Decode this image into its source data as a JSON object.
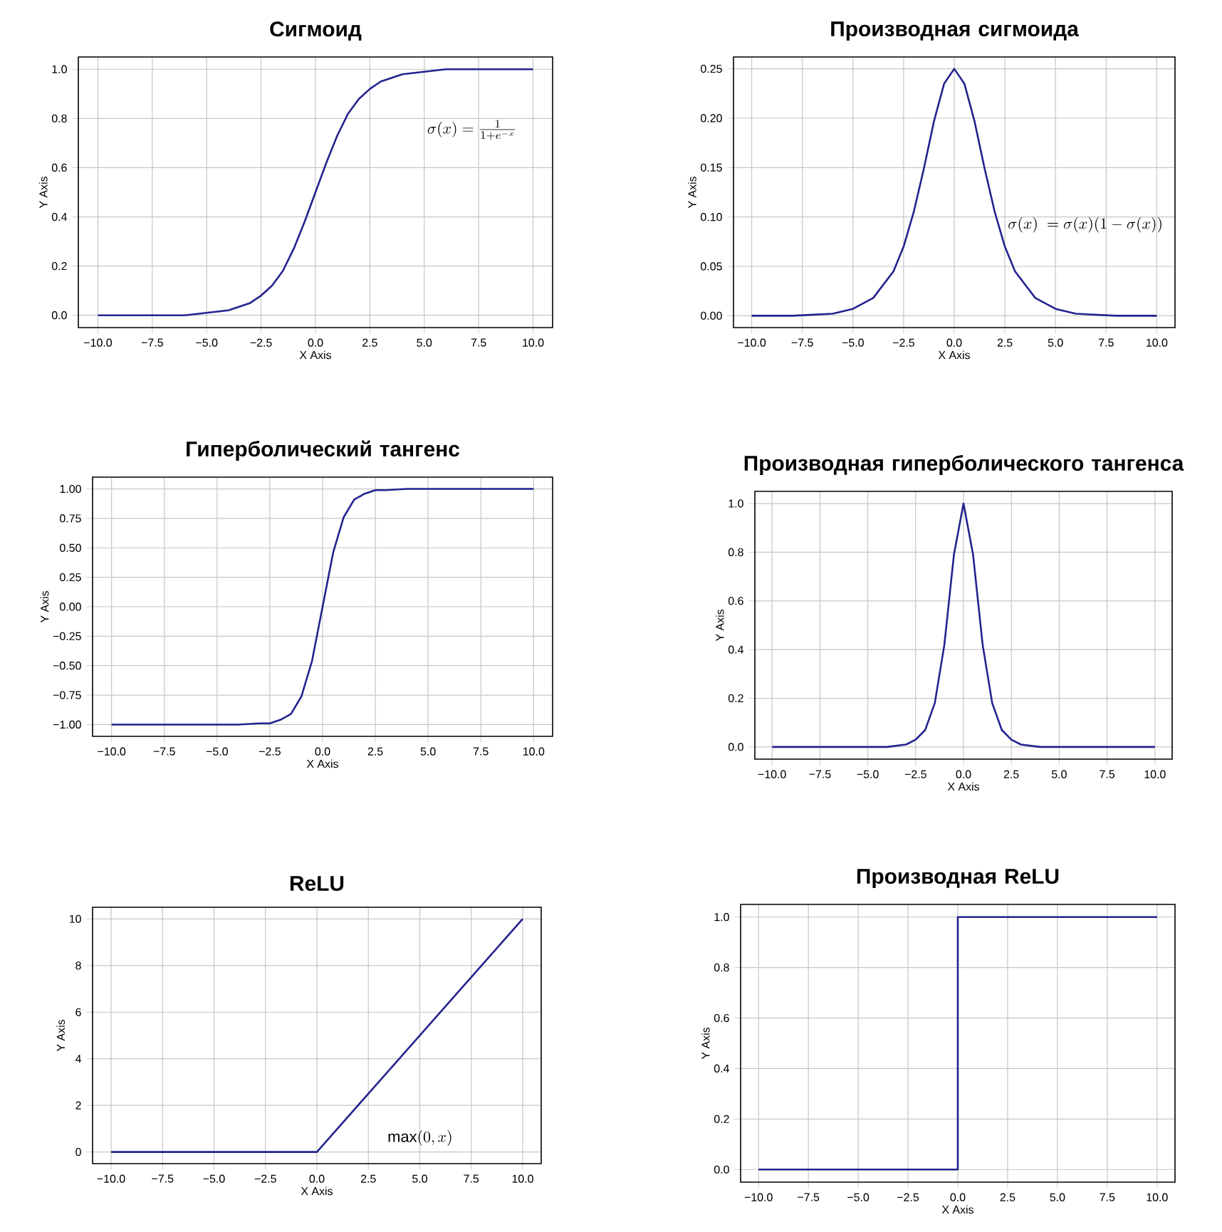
{
  "chart_data": [
    {
      "type": "line",
      "title": "Сигмоид",
      "xlabel": "X Axis",
      "ylabel": "Y Axis",
      "grid": true,
      "annotations": [
        "\\sigma(x) = \\frac{1}{1+e^{-x}}"
      ],
      "x": [
        -10,
        -8,
        -6,
        -5,
        -4,
        -3,
        -2.5,
        -2,
        -1.5,
        -1,
        -0.5,
        0,
        0.5,
        1,
        1.5,
        2,
        2.5,
        3,
        4,
        5,
        6,
        8,
        10
      ],
      "series": [
        {
          "color": "#23238f",
          "values": [
            0.0,
            0.0,
            0.0,
            0.01,
            0.02,
            0.05,
            0.08,
            0.12,
            0.18,
            0.27,
            0.38,
            0.5,
            0.62,
            0.73,
            0.82,
            0.88,
            0.92,
            0.95,
            0.98,
            0.99,
            1.0,
            1.0,
            1.0
          ]
        }
      ],
      "xlim": [
        -10.9,
        10.9
      ],
      "ylim": [
        -0.05,
        1.05
      ],
      "xticks": [
        {
          "value": -10,
          "label": "−10.0"
        },
        {
          "value": -7.5,
          "label": "−7.5"
        },
        {
          "value": -5,
          "label": "−5.0"
        },
        {
          "value": -2.5,
          "label": "−2.5"
        },
        {
          "value": 0,
          "label": "0.0"
        },
        {
          "value": 2.5,
          "label": "2.5"
        },
        {
          "value": 5,
          "label": "5.0"
        },
        {
          "value": 7.5,
          "label": "7.5"
        },
        {
          "value": 10,
          "label": "10.0"
        }
      ],
      "yticks": [
        {
          "value": 0,
          "label": "0.0"
        },
        {
          "value": 0.2,
          "label": "0.2"
        },
        {
          "value": 0.4,
          "label": "0.4"
        },
        {
          "value": 0.6,
          "label": "0.6"
        },
        {
          "value": 0.8,
          "label": "0.8"
        },
        {
          "value": 1,
          "label": "1.0"
        }
      ]
    },
    {
      "type": "line",
      "title": "Производная сигмоида",
      "xlabel": "X Axis",
      "ylabel": "Y Axis",
      "grid": true,
      "annotations": [
        "\\sigma(x)\\ = \\sigma(x)(1-\\sigma(x))"
      ],
      "x": [
        -10,
        -8,
        -6,
        -5,
        -4,
        -3,
        -2.5,
        -2,
        -1.5,
        -1,
        -0.5,
        0,
        0.5,
        1,
        1.5,
        2,
        2.5,
        3,
        4,
        5,
        6,
        8,
        10
      ],
      "series": [
        {
          "color": "#23238f",
          "values": [
            0.0,
            0.0,
            0.002,
            0.007,
            0.018,
            0.045,
            0.07,
            0.105,
            0.149,
            0.197,
            0.235,
            0.25,
            0.235,
            0.197,
            0.149,
            0.105,
            0.07,
            0.045,
            0.018,
            0.007,
            0.002,
            0.0,
            0.0
          ]
        }
      ],
      "xlim": [
        -10.9,
        10.9
      ],
      "ylim": [
        -0.012,
        0.262
      ],
      "xticks": [
        {
          "value": -10,
          "label": "−10.0"
        },
        {
          "value": -7.5,
          "label": "−7.5"
        },
        {
          "value": -5,
          "label": "−5.0"
        },
        {
          "value": -2.5,
          "label": "−2.5"
        },
        {
          "value": 0,
          "label": "0.0"
        },
        {
          "value": 2.5,
          "label": "2.5"
        },
        {
          "value": 5,
          "label": "5.0"
        },
        {
          "value": 7.5,
          "label": "7.5"
        },
        {
          "value": 10,
          "label": "10.0"
        }
      ],
      "yticks": [
        {
          "value": 0,
          "label": "0.00"
        },
        {
          "value": 0.05,
          "label": "0.05"
        },
        {
          "value": 0.1,
          "label": "0.10"
        },
        {
          "value": 0.15,
          "label": "0.15"
        },
        {
          "value": 0.2,
          "label": "0.20"
        },
        {
          "value": 0.25,
          "label": "0.25"
        }
      ]
    },
    {
      "type": "line",
      "title": "Гиперболический тангенс",
      "xlabel": "X Axis",
      "ylabel": "Y Axis",
      "grid": true,
      "x": [
        -10,
        -8,
        -6,
        -5,
        -4,
        -3,
        -2.5,
        -2,
        -1.5,
        -1,
        -0.5,
        0,
        0.5,
        1,
        1.5,
        2,
        2.5,
        3,
        4,
        5,
        6,
        8,
        10
      ],
      "series": [
        {
          "color": "#23238f",
          "values": [
            -1.0,
            -1.0,
            -1.0,
            -1.0,
            -1.0,
            -0.99,
            -0.99,
            -0.96,
            -0.91,
            -0.76,
            -0.46,
            0,
            0.46,
            0.76,
            0.91,
            0.96,
            0.99,
            0.99,
            1.0,
            1.0,
            1.0,
            1.0,
            1.0
          ]
        }
      ],
      "xlim": [
        -10.9,
        10.9
      ],
      "ylim": [
        -1.1,
        1.1
      ],
      "xticks": [
        {
          "value": -10,
          "label": "−10.0"
        },
        {
          "value": -7.5,
          "label": "−7.5"
        },
        {
          "value": -5,
          "label": "−5.0"
        },
        {
          "value": -2.5,
          "label": "−2.5"
        },
        {
          "value": 0,
          "label": "0.0"
        },
        {
          "value": 2.5,
          "label": "2.5"
        },
        {
          "value": 5,
          "label": "5.0"
        },
        {
          "value": 7.5,
          "label": "7.5"
        },
        {
          "value": 10,
          "label": "10.0"
        }
      ],
      "yticks": [
        {
          "value": -1,
          "label": "−1.00"
        },
        {
          "value": -0.75,
          "label": "−0.75"
        },
        {
          "value": -0.5,
          "label": "−0.50"
        },
        {
          "value": -0.25,
          "label": "−0.25"
        },
        {
          "value": 0,
          "label": "0.00"
        },
        {
          "value": 0.25,
          "label": "0.25"
        },
        {
          "value": 0.5,
          "label": "0.50"
        },
        {
          "value": 0.75,
          "label": "0.75"
        },
        {
          "value": 1,
          "label": "1.00"
        }
      ]
    },
    {
      "type": "line",
      "title": "Производная гиперболического тангенса",
      "xlabel": "X Axis",
      "ylabel": "Y Axis",
      "grid": true,
      "x": [
        -10,
        -8,
        -6,
        -5,
        -4,
        -3,
        -2.5,
        -2,
        -1.5,
        -1,
        -0.5,
        0,
        0.5,
        1,
        1.5,
        2,
        2.5,
        3,
        4,
        5,
        6,
        8,
        10
      ],
      "series": [
        {
          "color": "#23238f",
          "values": [
            0,
            0,
            0,
            0,
            0.0,
            0.01,
            0.03,
            0.07,
            0.18,
            0.42,
            0.79,
            1,
            0.79,
            0.42,
            0.18,
            0.07,
            0.03,
            0.01,
            0.0,
            0,
            0,
            0,
            0
          ]
        }
      ],
      "xlim": [
        -10.9,
        10.9
      ],
      "ylim": [
        -0.05,
        1.05
      ],
      "xticks": [
        {
          "value": -10,
          "label": "−10.0"
        },
        {
          "value": -7.5,
          "label": "−7.5"
        },
        {
          "value": -5,
          "label": "−5.0"
        },
        {
          "value": -2.5,
          "label": "−2.5"
        },
        {
          "value": 0,
          "label": "0.0"
        },
        {
          "value": 2.5,
          "label": "2.5"
        },
        {
          "value": 5,
          "label": "5.0"
        },
        {
          "value": 7.5,
          "label": "7.5"
        },
        {
          "value": 10,
          "label": "10.0"
        }
      ],
      "yticks": [
        {
          "value": 0,
          "label": "0.0"
        },
        {
          "value": 0.2,
          "label": "0.2"
        },
        {
          "value": 0.4,
          "label": "0.4"
        },
        {
          "value": 0.6,
          "label": "0.6"
        },
        {
          "value": 0.8,
          "label": "0.8"
        },
        {
          "value": 1,
          "label": "1.0"
        }
      ]
    },
    {
      "type": "line",
      "title": "ReLU",
      "xlabel": "X Axis",
      "ylabel": "Y Axis",
      "grid": true,
      "annotations": [
        "\\mathrm{max}(0,x)"
      ],
      "x": [
        -10,
        0,
        10
      ],
      "series": [
        {
          "color": "#23238f",
          "values": [
            0,
            0,
            10
          ]
        }
      ],
      "xlim": [
        -10.9,
        10.9
      ],
      "ylim": [
        -0.5,
        10.5
      ],
      "xticks": [
        {
          "value": -10,
          "label": "−10.0"
        },
        {
          "value": -7.5,
          "label": "−7.5"
        },
        {
          "value": -5,
          "label": "−5.0"
        },
        {
          "value": -2.5,
          "label": "−2.5"
        },
        {
          "value": 0,
          "label": "0.0"
        },
        {
          "value": 2.5,
          "label": "2.5"
        },
        {
          "value": 5,
          "label": "5.0"
        },
        {
          "value": 7.5,
          "label": "7.5"
        },
        {
          "value": 10,
          "label": "10.0"
        }
      ],
      "yticks": [
        0,
        2,
        4,
        6,
        8,
        10
      ]
    },
    {
      "type": "line",
      "title": "Производная ReLU",
      "xlabel": "X Axis",
      "ylabel": "Y Axis",
      "grid": true,
      "x": [
        -10,
        0,
        0,
        10
      ],
      "series": [
        {
          "color": "#23238f",
          "values": [
            0,
            0,
            1,
            1
          ]
        }
      ],
      "xlim": [
        -10.9,
        10.9
      ],
      "ylim": [
        -0.05,
        1.05
      ],
      "xticks": [
        {
          "value": -10,
          "label": "−10.0"
        },
        {
          "value": -7.5,
          "label": "−7.5"
        },
        {
          "value": -5,
          "label": "−5.0"
        },
        {
          "value": -2.5,
          "label": "−2.5"
        },
        {
          "value": 0,
          "label": "0.0"
        },
        {
          "value": 2.5,
          "label": "2.5"
        },
        {
          "value": 5,
          "label": "5.0"
        },
        {
          "value": 7.5,
          "label": "7.5"
        },
        {
          "value": 10,
          "label": "10.0"
        }
      ],
      "yticks": [
        {
          "value": 0,
          "label": "0.0"
        },
        {
          "value": 0.2,
          "label": "0.2"
        },
        {
          "value": 0.4,
          "label": "0.4"
        },
        {
          "value": 0.6,
          "label": "0.6"
        },
        {
          "value": 0.8,
          "label": "0.8"
        },
        {
          "value": 1,
          "label": "1.0"
        }
      ]
    }
  ]
}
